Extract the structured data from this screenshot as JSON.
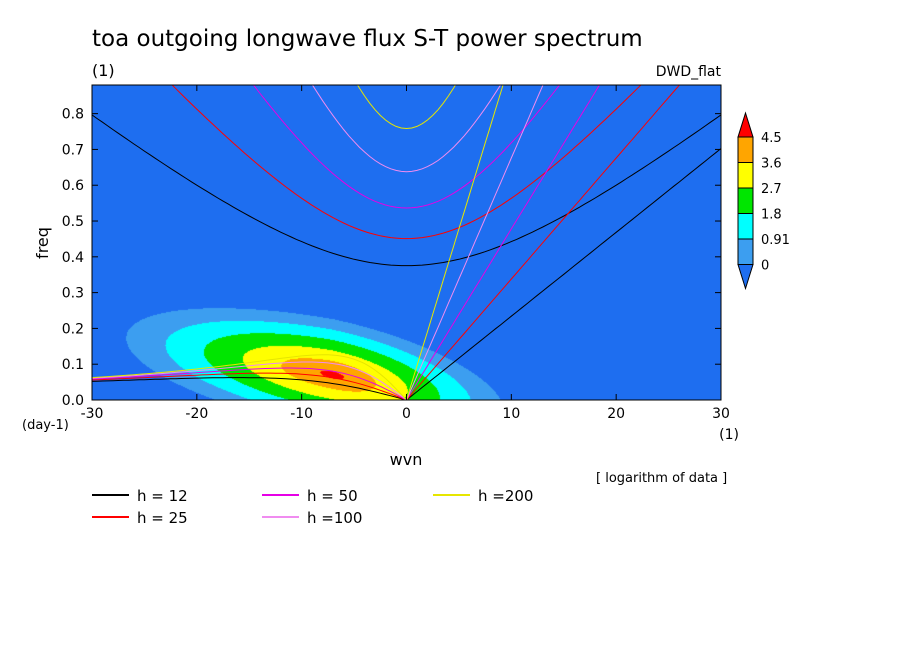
{
  "chart_data": {
    "type": "heatmap",
    "title": "toa outgoing longwave flux S-T power spectrum",
    "title_units": "(1)",
    "dataset_label": "DWD_flat",
    "xlabel": "wvn",
    "xunits": "(1)",
    "ylabel": "freq",
    "yunits": "(day-1)",
    "xlim": [
      -30,
      30
    ],
    "ylim": [
      0,
      0.88
    ],
    "x_ticks": [
      -30,
      -20,
      -10,
      0,
      10,
      20,
      30
    ],
    "x_tick_labels": [
      "-30",
      "-20",
      "-10",
      "0",
      "10",
      "20",
      "30"
    ],
    "y_ticks": [
      0,
      0.1,
      0.2,
      0.3,
      0.4,
      0.5,
      0.6,
      0.7,
      0.8
    ],
    "y_tick_labels": [
      "0.0",
      "0.1",
      "0.2",
      "0.3",
      "0.4",
      "0.5",
      "0.6",
      "0.7",
      "0.8"
    ],
    "data_note": "[ logarithm of data ]",
    "colorbar": {
      "levels": [
        0,
        0.91,
        1.8,
        2.7,
        3.6,
        4.5
      ],
      "labels": [
        "0",
        "0.91",
        "1.8",
        "2.7",
        "3.6",
        "4.5"
      ],
      "colors": [
        "#1e6ef0",
        "#3c9ef0",
        "#00ffff",
        "#00e600",
        "#ffff00",
        "#ffa500",
        "#ff0000"
      ]
    },
    "peak": {
      "wvn": -7,
      "freq": 0.07,
      "value": 4.8
    },
    "dispersion_curves": [
      {
        "label": "h = 12",
        "h": 12,
        "color": "#000000"
      },
      {
        "label": "h = 25",
        "h": 25,
        "color": "#ff0000"
      },
      {
        "label": "h = 50",
        "h": 50,
        "color": "#e600e6"
      },
      {
        "label": "h =100",
        "h": 100,
        "color": "#f08cf0"
      },
      {
        "label": "h =200",
        "h": 200,
        "color": "#e6e600"
      }
    ]
  }
}
